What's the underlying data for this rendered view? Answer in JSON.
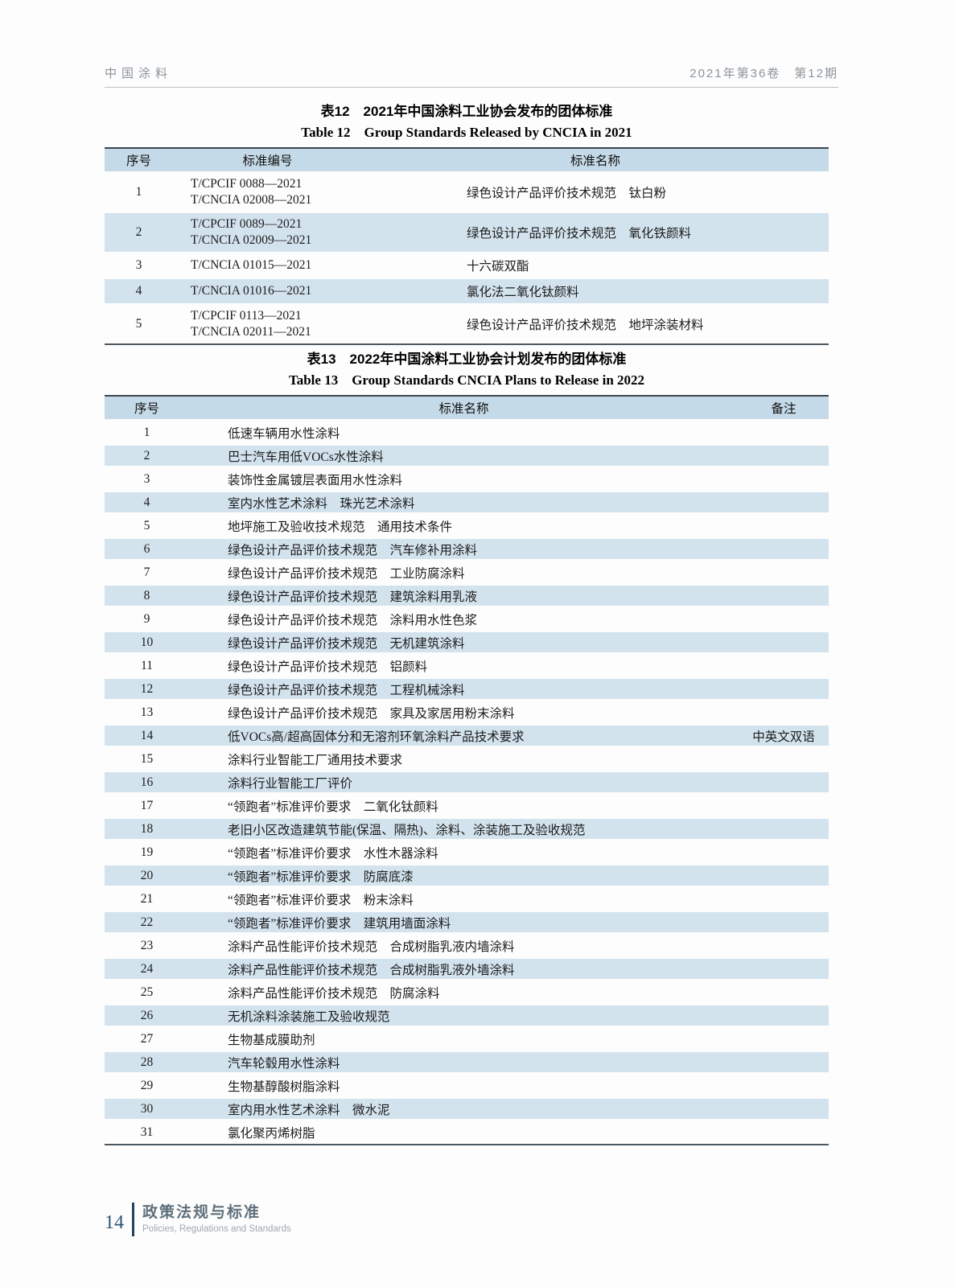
{
  "page_header": {
    "journal": "中国涂料",
    "issue": "2021年第36卷　第12期"
  },
  "colors": {
    "table_header_bg": "#c5dae8",
    "row_stripe_bg": "#d3e3ee",
    "table_top_border": "#3c464f",
    "table_bottom_border": "#4c565e",
    "running_head_text": "#8b949c",
    "footer_accent_bar": "#24405e",
    "footer_page_number": "#2f5578",
    "footer_section_zh": "#5f707c",
    "footer_section_en": "#9fa9b0"
  },
  "table12": {
    "title_zh": "表12　2021年中国涂料工业协会发布的团体标准",
    "title_en": "Table 12　Group Standards Released by CNCIA in 2021",
    "columns": {
      "index": "序号",
      "code": "标准编号",
      "name": "标准名称"
    },
    "rows": [
      {
        "index": "1",
        "codes": [
          "T/CPCIF 0088—2021",
          "T/CNCIA 02008—2021"
        ],
        "name": "绿色设计产品评价技术规范　钛白粉"
      },
      {
        "index": "2",
        "codes": [
          "T/CPCIF 0089—2021",
          "T/CNCIA 02009—2021"
        ],
        "name": "绿色设计产品评价技术规范　氧化铁颜料"
      },
      {
        "index": "3",
        "codes": [
          "T/CNCIA 01015—2021"
        ],
        "name": "十六碳双酯"
      },
      {
        "index": "4",
        "codes": [
          "T/CNCIA 01016—2021"
        ],
        "name": "氯化法二氧化钛颜料"
      },
      {
        "index": "5",
        "codes": [
          "T/CPCIF 0113—2021",
          "T/CNCIA 02011—2021"
        ],
        "name": "绿色设计产品评价技术规范　地坪涂装材料"
      }
    ]
  },
  "table13": {
    "title_zh": "表13　2022年中国涂料工业协会计划发布的团体标准",
    "title_en": "Table 13　Group Standards CNCIA Plans to Release in 2022",
    "columns": {
      "index": "序号",
      "name": "标准名称",
      "note": "备注"
    },
    "rows": [
      {
        "index": "1",
        "name": "低速车辆用水性涂料",
        "note": ""
      },
      {
        "index": "2",
        "name": "巴士汽车用低VOCs水性涂料",
        "note": ""
      },
      {
        "index": "3",
        "name": "装饰性金属镀层表面用水性涂料",
        "note": ""
      },
      {
        "index": "4",
        "name": "室内水性艺术涂料　珠光艺术涂料",
        "note": ""
      },
      {
        "index": "5",
        "name": "地坪施工及验收技术规范　通用技术条件",
        "note": ""
      },
      {
        "index": "6",
        "name": "绿色设计产品评价技术规范　汽车修补用涂料",
        "note": ""
      },
      {
        "index": "7",
        "name": "绿色设计产品评价技术规范　工业防腐涂料",
        "note": ""
      },
      {
        "index": "8",
        "name": "绿色设计产品评价技术规范　建筑涂料用乳液",
        "note": ""
      },
      {
        "index": "9",
        "name": "绿色设计产品评价技术规范　涂料用水性色浆",
        "note": ""
      },
      {
        "index": "10",
        "name": "绿色设计产品评价技术规范　无机建筑涂料",
        "note": ""
      },
      {
        "index": "11",
        "name": "绿色设计产品评价技术规范　铝颜料",
        "note": ""
      },
      {
        "index": "12",
        "name": "绿色设计产品评价技术规范　工程机械涂料",
        "note": ""
      },
      {
        "index": "13",
        "name": "绿色设计产品评价技术规范　家具及家居用粉末涂料",
        "note": ""
      },
      {
        "index": "14",
        "name": "低VOCs高/超高固体分和无溶剂环氧涂料产品技术要求",
        "note": "中英文双语"
      },
      {
        "index": "15",
        "name": "涂料行业智能工厂通用技术要求",
        "note": ""
      },
      {
        "index": "16",
        "name": "涂料行业智能工厂评价",
        "note": ""
      },
      {
        "index": "17",
        "name": "“领跑者”标准评价要求　二氧化钛颜料",
        "note": ""
      },
      {
        "index": "18",
        "name": "老旧小区改造建筑节能(保温、隔热)、涂料、涂装施工及验收规范",
        "note": ""
      },
      {
        "index": "19",
        "name": "“领跑者”标准评价要求　水性木器涂料",
        "note": ""
      },
      {
        "index": "20",
        "name": "“领跑者”标准评价要求　防腐底漆",
        "note": ""
      },
      {
        "index": "21",
        "name": "“领跑者”标准评价要求　粉末涂料",
        "note": ""
      },
      {
        "index": "22",
        "name": "“领跑者”标准评价要求　建筑用墙面涂料",
        "note": ""
      },
      {
        "index": "23",
        "name": "涂料产品性能评价技术规范　合成树脂乳液内墙涂料",
        "note": ""
      },
      {
        "index": "24",
        "name": "涂料产品性能评价技术规范　合成树脂乳液外墙涂料",
        "note": ""
      },
      {
        "index": "25",
        "name": "涂料产品性能评价技术规范　防腐涂料",
        "note": ""
      },
      {
        "index": "26",
        "name": "无机涂料涂装施工及验收规范",
        "note": ""
      },
      {
        "index": "27",
        "name": "生物基成膜助剂",
        "note": ""
      },
      {
        "index": "28",
        "name": "汽车轮毂用水性涂料",
        "note": ""
      },
      {
        "index": "29",
        "name": "生物基醇酸树脂涂料",
        "note": ""
      },
      {
        "index": "30",
        "name": "室内用水性艺术涂料　微水泥",
        "note": ""
      },
      {
        "index": "31",
        "name": "氯化聚丙烯树脂",
        "note": ""
      }
    ]
  },
  "footer": {
    "page_number": "14",
    "section_zh": "政策法规与标准",
    "section_en": "Policies, Regulations and Standards"
  }
}
